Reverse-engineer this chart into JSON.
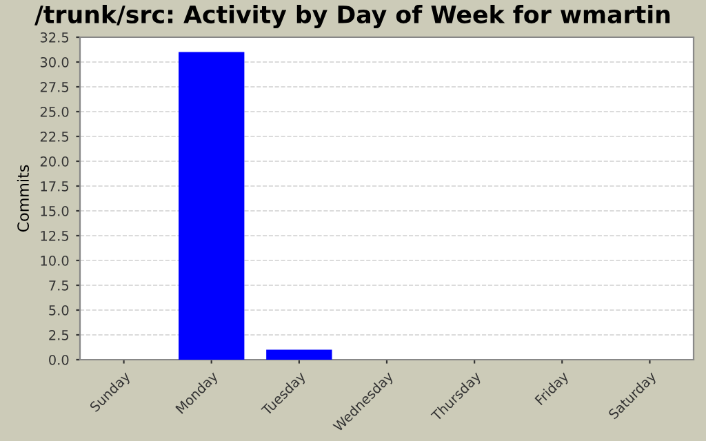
{
  "chart_data": {
    "type": "bar",
    "title": "/trunk/src: Activity by Day of Week for wmartin",
    "ylabel": "Commits",
    "categories": [
      "Sunday",
      "Monday",
      "Tuesday",
      "Wednesday",
      "Thursday",
      "Friday",
      "Saturday"
    ],
    "values": [
      0,
      31,
      1,
      0,
      0,
      0,
      0
    ],
    "color": "#0000ff",
    "ylim": [
      0,
      32.5
    ],
    "yticks": [
      {
        "value": 0,
        "label": "0.0"
      },
      {
        "value": 2.5,
        "label": "2.5"
      },
      {
        "value": 5,
        "label": "5.0"
      },
      {
        "value": 7.5,
        "label": "7.5"
      },
      {
        "value": 10,
        "label": "10.0"
      },
      {
        "value": 12.5,
        "label": "12.5"
      },
      {
        "value": 15,
        "label": "15.0"
      },
      {
        "value": 17.5,
        "label": "17.5"
      },
      {
        "value": 20,
        "label": "20.0"
      },
      {
        "value": 22.5,
        "label": "22.5"
      },
      {
        "value": 25,
        "label": "25.0"
      },
      {
        "value": 27.5,
        "label": "27.5"
      },
      {
        "value": 30,
        "label": "30.0"
      },
      {
        "value": 32.5,
        "label": "32.5"
      }
    ],
    "grid": "y"
  }
}
